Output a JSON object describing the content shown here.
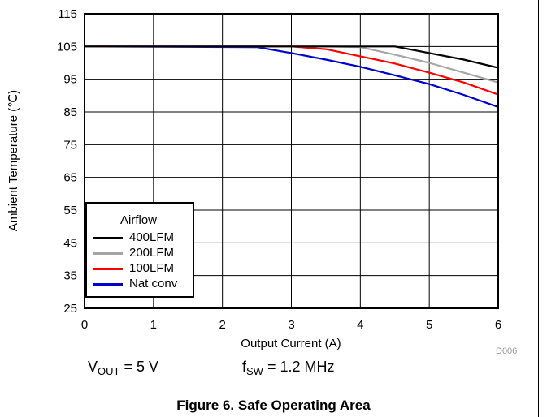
{
  "chart_data": {
    "type": "line",
    "title": "",
    "xlabel": "Output Current (A)",
    "ylabel": "Ambient Temperature (℃)",
    "xlim": [
      0,
      6
    ],
    "ylim": [
      25,
      115
    ],
    "xticks": [
      0,
      1,
      2,
      3,
      4,
      5,
      6
    ],
    "yticks": [
      25,
      35,
      45,
      55,
      65,
      75,
      85,
      95,
      105,
      115
    ],
    "grid": true,
    "legend_title": "Airflow",
    "legend_position": "bottom-left",
    "series": [
      {
        "name": "400LFM",
        "color": "#000000",
        "x": [
          0,
          3.5,
          4.5,
          5.0,
          5.5,
          6.0
        ],
        "y": [
          105,
          105,
          105,
          103,
          101,
          98.5
        ]
      },
      {
        "name": "200LFM",
        "color": "#a6a6a6",
        "x": [
          0,
          3.5,
          4.0,
          4.5,
          5.0,
          5.5,
          6.0
        ],
        "y": [
          105,
          105,
          104.8,
          102.5,
          100,
          97,
          94
        ]
      },
      {
        "name": "100LFM",
        "color": "#ff0000",
        "x": [
          0,
          3.0,
          3.5,
          4.0,
          4.5,
          5.0,
          5.5,
          6.0
        ],
        "y": [
          105,
          105,
          104.2,
          102,
          99.8,
          97,
          94,
          90.3
        ]
      },
      {
        "name": "Nat conv",
        "color": "#0000cc",
        "x": [
          0,
          2.5,
          3.0,
          3.5,
          4.0,
          4.5,
          5.0,
          5.5,
          6.0
        ],
        "y": [
          105,
          104.8,
          103,
          101,
          98.8,
          96.2,
          93.5,
          90.2,
          86.5
        ]
      }
    ]
  },
  "conditions": {
    "vout_symbol": "V",
    "vout_sub": "OUT",
    "vout_value": " = 5 V",
    "fsw_symbol": "f",
    "fsw_sub": "SW",
    "fsw_value": " = 1.2 MHz"
  },
  "figure_code": "D006",
  "caption": "Figure 6. Safe Operating Area"
}
